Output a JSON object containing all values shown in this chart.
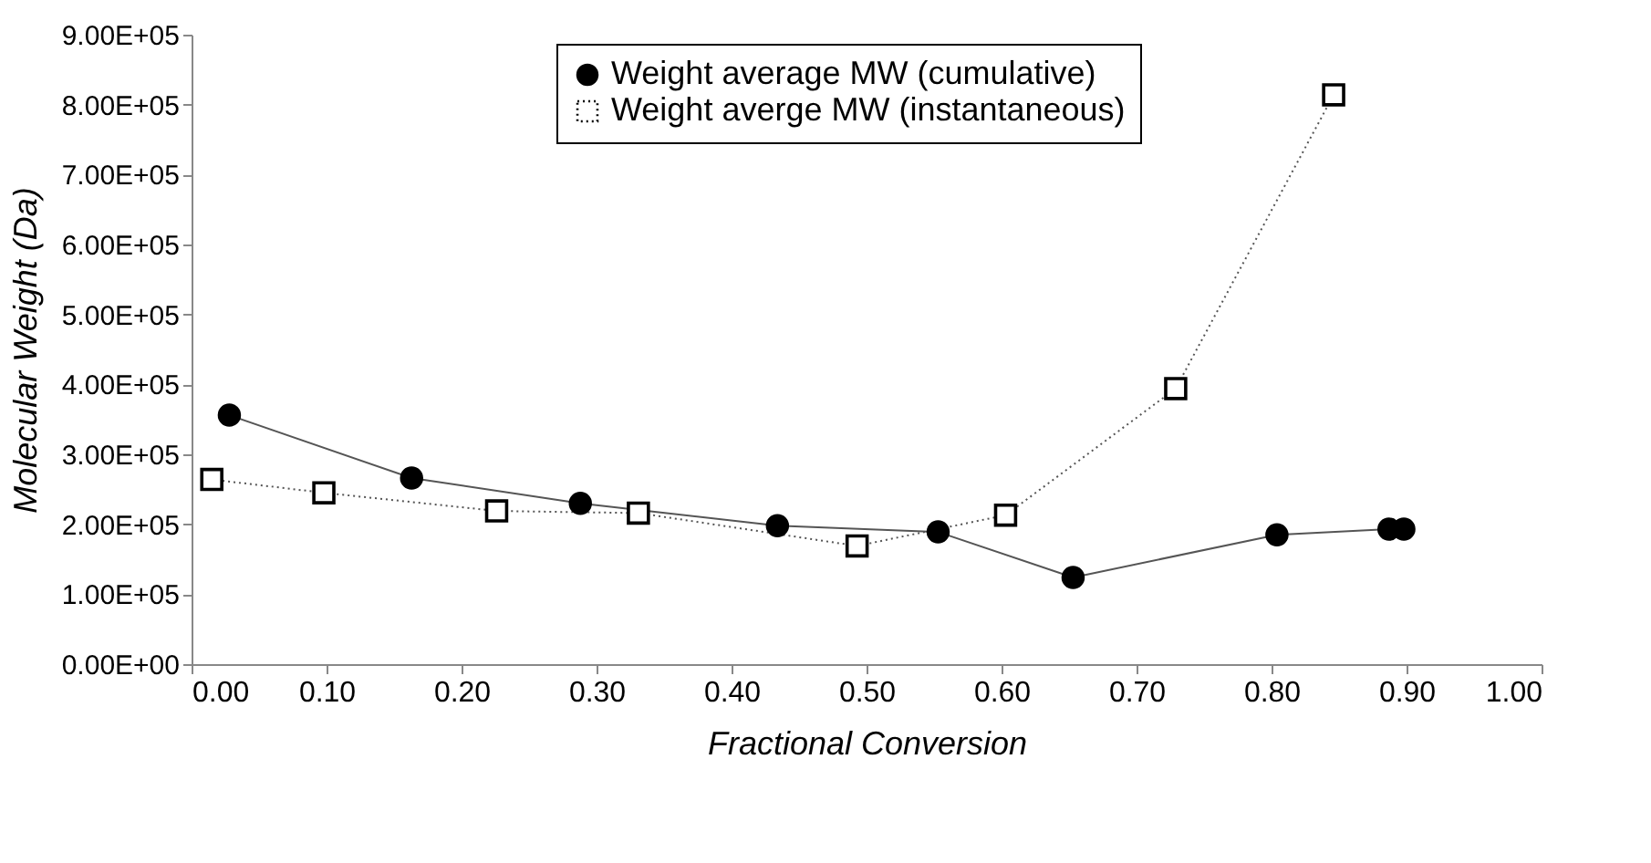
{
  "chart_data": {
    "type": "line",
    "xlabel": "Fractional Conversion",
    "ylabel": "Molecular Weight (Da)",
    "series": [
      {
        "name": "Weight average MW (cumulative)",
        "color": "#000000",
        "marker": "circle",
        "line_style": "solid",
        "x": [
          0.028,
          0.163,
          0.288,
          0.434,
          0.553,
          0.653,
          0.804,
          0.887,
          0.898
        ],
        "values": [
          356000,
          266000,
          230000,
          198000,
          189000,
          124000,
          185000,
          193000,
          193000
        ]
      },
      {
        "name": "Weight averge MW (instantaneous)",
        "color": "#000000",
        "marker": "square",
        "line_style": "dotted",
        "x": [
          0.015,
          0.098,
          0.226,
          0.331,
          0.493,
          0.603,
          0.729,
          0.846
        ],
        "values": [
          264000,
          245000,
          219000,
          216000,
          169000,
          213000,
          394000,
          814000
        ]
      }
    ],
    "xlim": [
      0,
      1
    ],
    "xticks": [
      {
        "value": 0,
        "label": "0.00"
      },
      {
        "value": 0.1,
        "label": "0.10"
      },
      {
        "value": 0.2,
        "label": "0.20"
      },
      {
        "value": 0.3,
        "label": "0.30"
      },
      {
        "value": 0.4,
        "label": "0.40"
      },
      {
        "value": 0.5,
        "label": "0.50"
      },
      {
        "value": 0.6,
        "label": "0.60"
      },
      {
        "value": 0.7,
        "label": "0.70"
      },
      {
        "value": 0.8,
        "label": "0.80"
      },
      {
        "value": 0.9,
        "label": "0.90"
      },
      {
        "value": 1,
        "label": "1.00"
      }
    ],
    "ylim": [
      0,
      900000
    ],
    "yticks": [
      {
        "value": 0,
        "label": "0.00E+00"
      },
      {
        "value": 100000,
        "label": "1.00E+05"
      },
      {
        "value": 200000,
        "label": "2.00E+05"
      },
      {
        "value": 300000,
        "label": "3.00E+05"
      },
      {
        "value": 400000,
        "label": "4.00E+05"
      },
      {
        "value": 500000,
        "label": "5.00E+05"
      },
      {
        "value": 600000,
        "label": "6.00E+05"
      },
      {
        "value": 700000,
        "label": "7.00E+05"
      },
      {
        "value": 800000,
        "label": "8.00E+05"
      },
      {
        "value": 900000,
        "label": "9.00E+05"
      }
    ],
    "grid": false,
    "legend": "top"
  }
}
